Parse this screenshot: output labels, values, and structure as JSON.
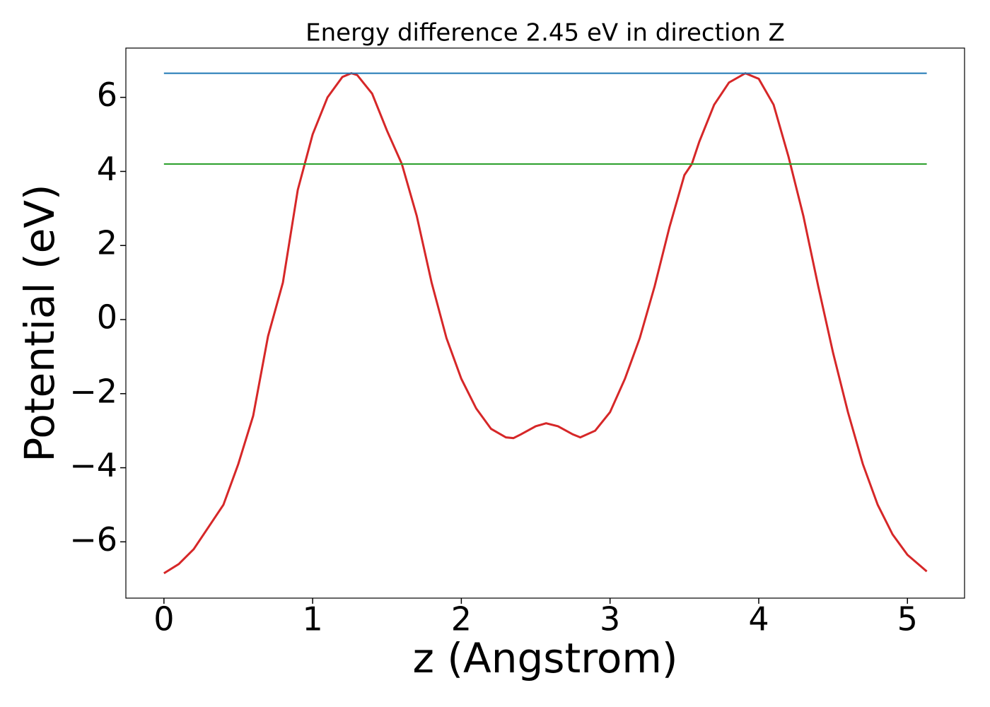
{
  "chart_data": {
    "type": "line",
    "title": "Energy difference 2.45 eV in direction Z",
    "xlabel": "z (Angstrom)",
    "ylabel": "Potential (eV)",
    "xlim": [
      -0.256,
      5.384
    ],
    "ylim": [
      -7.52,
      7.33
    ],
    "xticks": [
      0,
      1,
      2,
      3,
      4,
      5
    ],
    "yticks": [
      {
        "value": -6,
        "label": "−6"
      },
      {
        "value": -4,
        "label": "−4"
      },
      {
        "value": -2,
        "label": "−2"
      },
      0,
      2,
      4,
      6
    ],
    "series": [
      {
        "color": "#d62728",
        "x": [
          0,
          0.1,
          0.2,
          0.3,
          0.4,
          0.5,
          0.6,
          0.7,
          0.8,
          0.9,
          1.0,
          1.1,
          1.2,
          1.26,
          1.3,
          1.4,
          1.5,
          1.6,
          1.7,
          1.8,
          1.9,
          2.0,
          2.1,
          2.2,
          2.3,
          2.35,
          2.4,
          2.5,
          2.57,
          2.65,
          2.75,
          2.8,
          2.9,
          3.0,
          3.1,
          3.2,
          3.3,
          3.4,
          3.5,
          3.55,
          3.6,
          3.7,
          3.8,
          3.91,
          4.0,
          4.1,
          4.2,
          4.3,
          4.4,
          4.5,
          4.6,
          4.7,
          4.8,
          4.9,
          5.0,
          5.13
        ],
        "values": [
          -6.85,
          -6.6,
          -6.2,
          -5.6,
          -5.0,
          -3.9,
          -2.6,
          -0.45,
          1.0,
          3.5,
          5.0,
          6.0,
          6.55,
          6.65,
          6.6,
          6.1,
          5.1,
          4.2,
          2.8,
          1.0,
          -0.5,
          -1.6,
          -2.4,
          -2.95,
          -3.18,
          -3.2,
          -3.1,
          -2.88,
          -2.8,
          -2.88,
          -3.1,
          -3.18,
          -3.0,
          -2.5,
          -1.6,
          -0.5,
          0.9,
          2.5,
          3.9,
          4.2,
          4.8,
          5.8,
          6.4,
          6.65,
          6.5,
          5.8,
          4.4,
          2.8,
          0.9,
          -0.9,
          -2.5,
          -3.9,
          -5.0,
          -5.8,
          -6.35,
          -6.8
        ]
      },
      {
        "color": "#1f77b4",
        "x": [
          0,
          5.13
        ],
        "values": [
          6.65,
          6.65
        ]
      },
      {
        "color": "#2ca02c",
        "x": [
          0,
          5.13
        ],
        "values": [
          4.2,
          4.2
        ]
      }
    ]
  }
}
